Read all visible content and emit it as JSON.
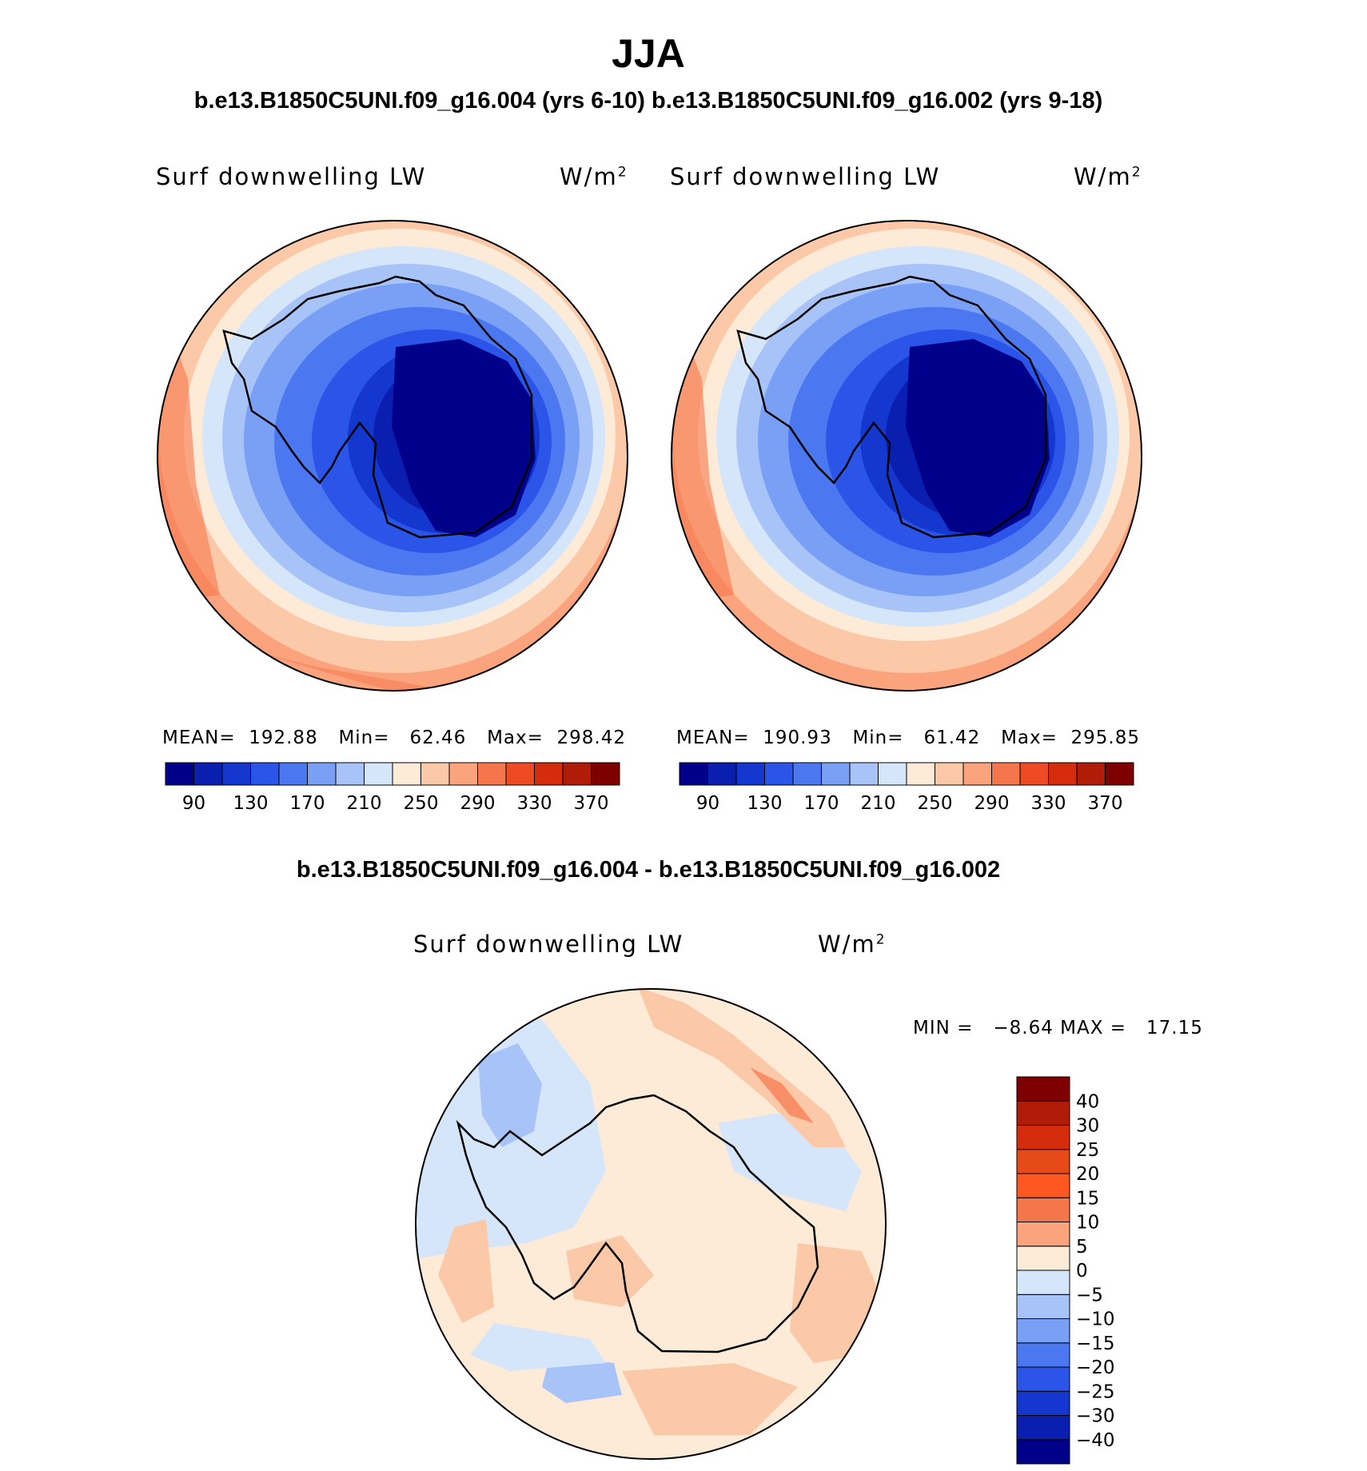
{
  "title": "JJA",
  "subtitle": "b.e13.B1850C5UNI.f09_g16.004 (yrs 6-10) b.e13.B1850C5UNI.f09_g16.002 (yrs 9-18)",
  "diff_title": "b.e13.B1850C5UNI.f09_g16.004 - b.e13.B1850C5UNI.f09_g16.002",
  "panels": [
    {
      "variable": "Surf  downwelling  LW",
      "units": "W/m",
      "units_exp": "2",
      "stats": {
        "mean_label": "MEAN=",
        "mean": "192.88",
        "min_label": "Min=",
        "min": "62.46",
        "max_label": "Max=",
        "max": "298.42"
      }
    },
    {
      "variable": "Surf  downwelling  LW",
      "units": "W/m",
      "units_exp": "2",
      "stats": {
        "mean_label": "MEAN=",
        "mean": "190.93",
        "min_label": "Min=",
        "min": "61.42",
        "max_label": "Max=",
        "max": "295.85"
      }
    }
  ],
  "diff_panel": {
    "variable": "Surf  downwelling  LW",
    "units": "W/m",
    "units_exp": "2",
    "min_label": "MIN  =",
    "min": "−8.64",
    "max_label": "MAX  =",
    "max": "17.15"
  },
  "colorbar_abs": {
    "colors": [
      "#00008b",
      "#0a1fb0",
      "#1438cf",
      "#2a55e8",
      "#4b78f0",
      "#7aa0f5",
      "#a7c3f8",
      "#d6e6fa",
      "#fdebd8",
      "#fcc9a8",
      "#fba37c",
      "#f6764c",
      "#ee4a24",
      "#d62c0e",
      "#b01c08",
      "#7f0000"
    ],
    "tick_labels": [
      "90",
      "130",
      "170",
      "210",
      "250",
      "290",
      "330",
      "370"
    ]
  },
  "colorbar_diff": {
    "colors": [
      "#00008b",
      "#0a1fb0",
      "#1438cf",
      "#2a55e8",
      "#4b78f0",
      "#7aa0f5",
      "#a7c3f8",
      "#d6e6fa",
      "#fdebd8",
      "#fba37c",
      "#f6764c",
      "#ff5722",
      "#e64a19",
      "#d62c0e",
      "#b01c08",
      "#7f0000"
    ],
    "tick_labels": [
      "−40",
      "−30",
      "−25",
      "−20",
      "−15",
      "−10",
      "−5",
      "0",
      "5",
      "10",
      "15",
      "20",
      "25",
      "30",
      "40"
    ]
  }
}
